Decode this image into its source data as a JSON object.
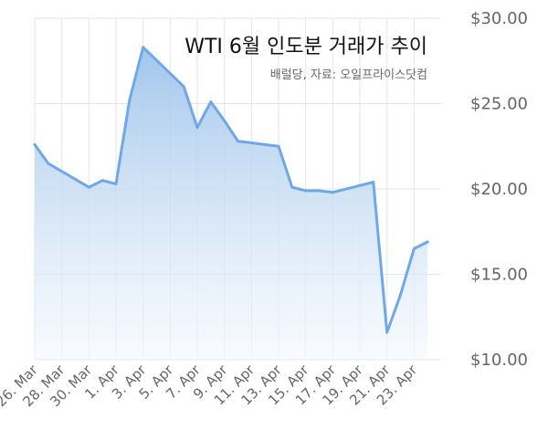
{
  "chart_data": {
    "type": "area",
    "title": "WTI 6월 인도분 거래가 추이",
    "subtitle": "배럴당, 자료: 오일프라이스닷컴",
    "ylim": [
      10,
      30
    ],
    "yticks": [
      "$10.00",
      "$15.00",
      "$20.00",
      "$25.00",
      "$30.00"
    ],
    "xtick_labels": [
      "26. Mar",
      "28. Mar",
      "30. Mar",
      "1. Apr",
      "3. Apr",
      "5. Apr",
      "7. Apr",
      "9. Apr",
      "11. Apr",
      "13. Apr",
      "15. Apr",
      "17. Apr",
      "19. Apr",
      "21. Apr",
      "23. Apr"
    ],
    "grid": true,
    "colors": {
      "line": "#6fa8e8",
      "fill_top": "#9dc3ea",
      "fill_bottom": "#f4f8fd",
      "grid": "#e6e6e6"
    },
    "x": [
      0,
      1,
      4,
      5,
      6,
      7,
      8,
      11,
      12,
      13,
      14,
      15,
      18,
      19,
      20,
      21,
      22,
      25,
      26,
      27,
      28,
      29
    ],
    "values": [
      22.6,
      21.5,
      20.1,
      20.5,
      20.3,
      25.2,
      28.3,
      26.0,
      23.6,
      25.1,
      24.0,
      22.8,
      22.5,
      20.1,
      19.9,
      19.9,
      19.8,
      20.4,
      11.6,
      13.8,
      16.5,
      16.9
    ]
  }
}
